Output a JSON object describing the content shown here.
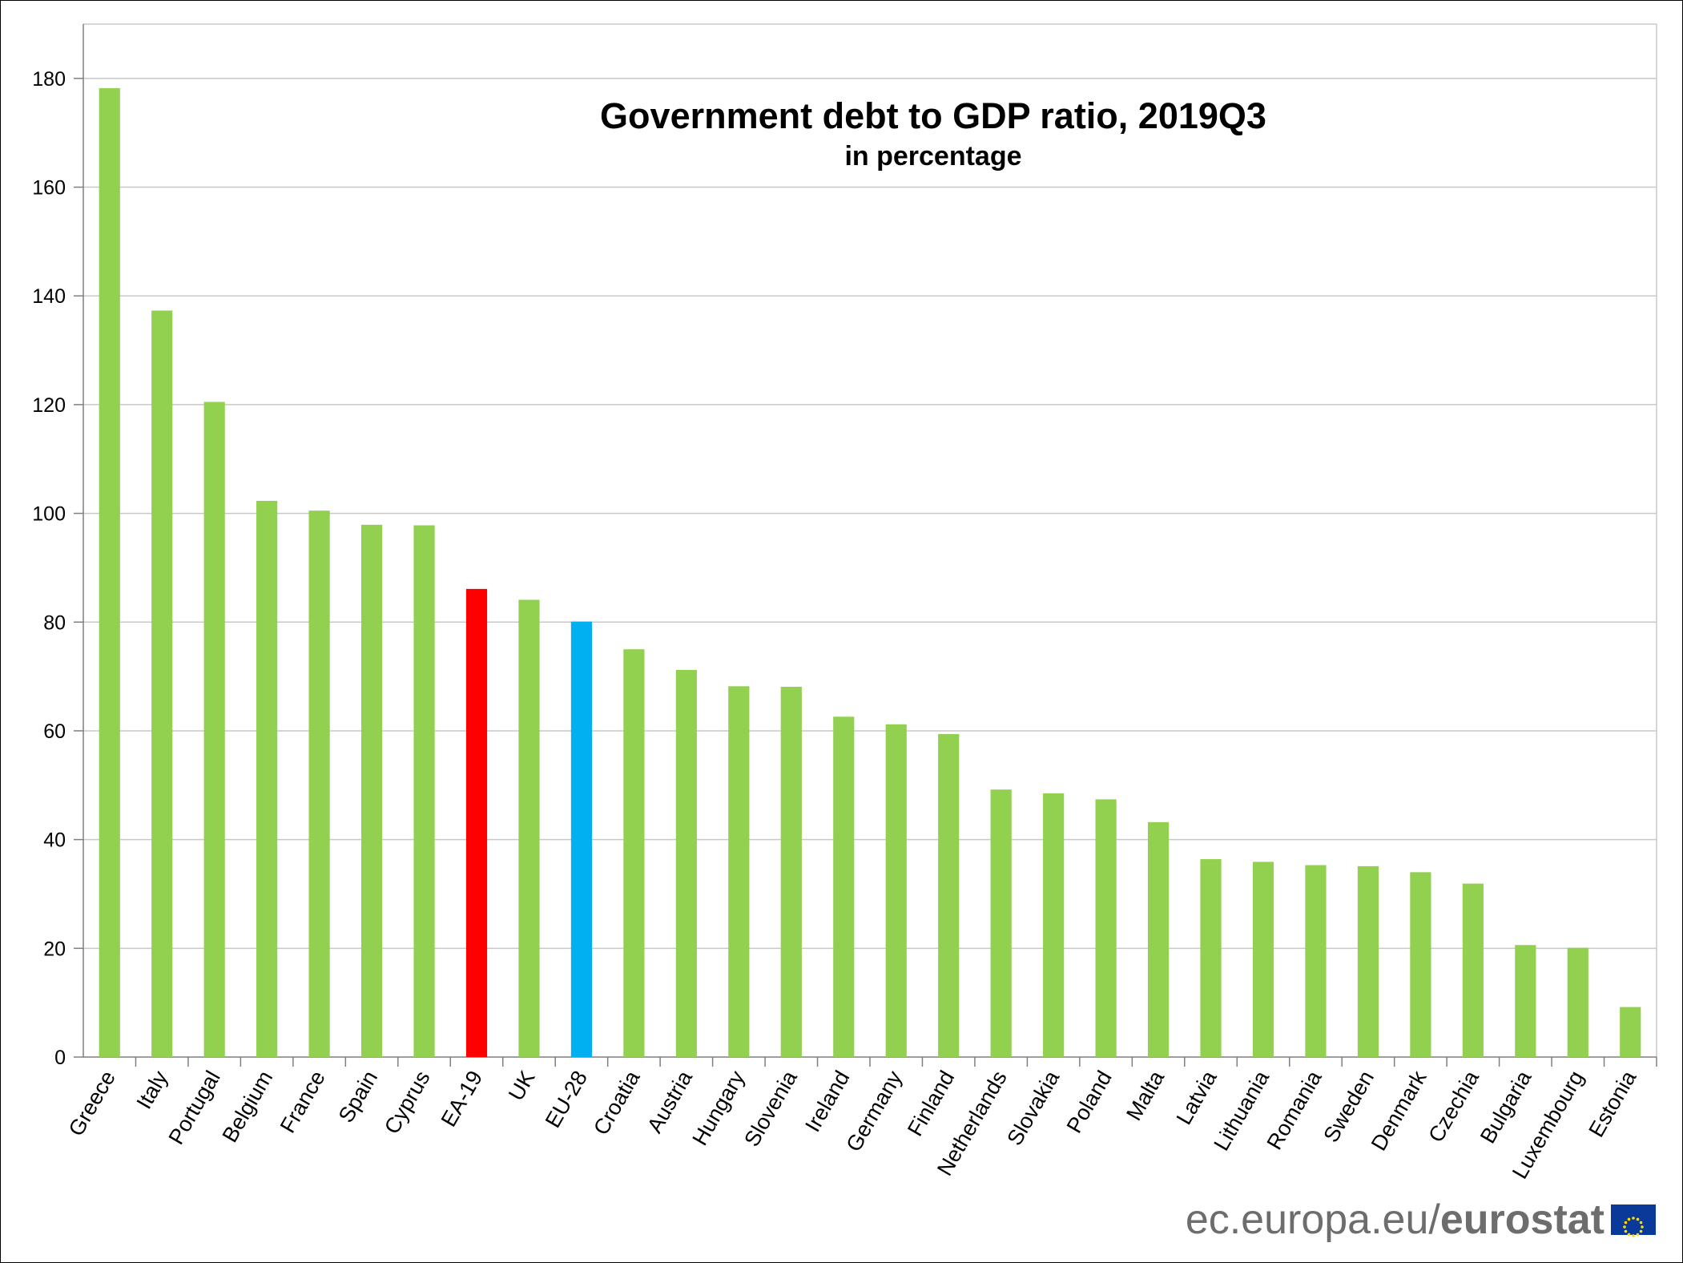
{
  "chart_data": {
    "type": "bar",
    "title": "Government debt to GDP ratio, 2019Q3",
    "subtitle": "in percentage",
    "xlabel": "",
    "ylabel": "",
    "ylim": [
      0,
      190
    ],
    "yticks": [
      0,
      20,
      40,
      60,
      80,
      100,
      120,
      140,
      160,
      180
    ],
    "grid": true,
    "categories": [
      "Greece",
      "Italy",
      "Portugal",
      "Belgium",
      "France",
      "Spain",
      "Cyprus",
      "EA-19",
      "UK",
      "EU-28",
      "Croatia",
      "Austria",
      "Hungary",
      "Slovenia",
      "Ireland",
      "Germany",
      "Finland",
      "Netherlands",
      "Slovakia",
      "Poland",
      "Malta",
      "Latvia",
      "Lithuania",
      "Romania",
      "Sweden",
      "Denmark",
      "Czechia",
      "Bulgaria",
      "Luxembourg",
      "Estonia"
    ],
    "values": [
      178.2,
      137.3,
      120.5,
      102.3,
      100.5,
      97.9,
      97.8,
      86.1,
      84.1,
      80.1,
      75.0,
      71.2,
      68.2,
      68.1,
      62.6,
      61.2,
      59.4,
      49.2,
      48.5,
      47.4,
      43.2,
      36.4,
      35.9,
      35.3,
      35.1,
      34.0,
      31.9,
      20.6,
      20.1,
      9.2
    ],
    "colors": {
      "default": "#92d050",
      "EA-19": "#ff0000",
      "EU-28": "#00b0f0"
    }
  },
  "footer": {
    "url": "ec.europa.eu/",
    "brand": "eurostat"
  },
  "colors": {
    "flag": "#0a3a99",
    "stars": "#ffdd00"
  }
}
